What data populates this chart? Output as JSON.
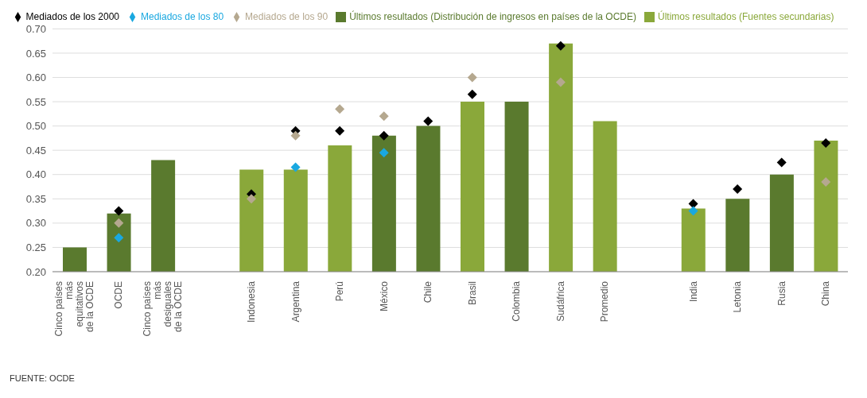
{
  "chart_data": {
    "type": "bar",
    "stacked": true,
    "categories": [
      "Cinco países más equitativos de la OCDE",
      "OCDE",
      "Cinco países más desiguales de la OCDE",
      null,
      "Indonesia",
      "Argentina",
      "Perú",
      "México",
      "Chile",
      "Brasil",
      "Colombia",
      "Sudáfrica",
      "Promedio",
      null,
      "India",
      "Letonia",
      "Rusia",
      "China"
    ],
    "series": [
      {
        "name": "Últimos resultados (Distribución de ingresos en países de la OCDE)",
        "color": "#5a7a2e",
        "values": [
          0.25,
          0.32,
          0.43,
          null,
          null,
          null,
          null,
          0.48,
          0.5,
          null,
          0.55,
          null,
          null,
          null,
          null,
          0.35,
          0.4,
          null
        ]
      },
      {
        "name": "Últimos resultados (Fuentes secundarias)",
        "color": "#8aa83a",
        "values": [
          null,
          null,
          null,
          null,
          0.41,
          0.41,
          0.46,
          null,
          null,
          0.55,
          null,
          0.67,
          0.51,
          null,
          0.33,
          null,
          null,
          0.47
        ]
      },
      {
        "type": "scatter",
        "name": "Mediados de los 2000",
        "color": "#000000",
        "marker": "diamond",
        "values": [
          null,
          0.325,
          null,
          null,
          0.36,
          0.49,
          0.49,
          0.48,
          0.51,
          0.565,
          null,
          0.665,
          null,
          null,
          0.34,
          0.37,
          0.425,
          0.465
        ]
      },
      {
        "type": "scatter",
        "name": "Mediados de los 90",
        "color": "#b5a88f",
        "marker": "diamond",
        "values": [
          null,
          0.3,
          null,
          null,
          0.35,
          0.48,
          0.535,
          0.52,
          null,
          0.6,
          null,
          0.59,
          null,
          null,
          null,
          null,
          null,
          0.385
        ]
      },
      {
        "type": "scatter",
        "name": "Mediados de los 80",
        "color": "#1aa8e0",
        "marker": "diamond",
        "values": [
          null,
          0.27,
          null,
          null,
          null,
          0.415,
          null,
          0.445,
          null,
          null,
          null,
          null,
          null,
          null,
          0.325,
          null,
          null,
          null
        ]
      }
    ],
    "ylim": [
      0.2,
      0.7
    ],
    "yticks": [
      {
        "value": 0.2,
        "label": "0.20"
      },
      {
        "value": 0.25,
        "label": "0.25"
      },
      {
        "value": 0.3,
        "label": "0.30"
      },
      {
        "value": 0.35,
        "label": "0.35"
      },
      {
        "value": 0.4,
        "label": "0.40"
      },
      {
        "value": 0.45,
        "label": "0.45"
      },
      {
        "value": 0.5,
        "label": "0.50"
      },
      {
        "value": 0.55,
        "label": "0.55"
      },
      {
        "value": 0.6,
        "label": "0.60"
      },
      {
        "value": 0.65,
        "label": "0.65"
      },
      {
        "value": 0.7,
        "label": "0.70"
      }
    ],
    "grid": "y",
    "legend": "top",
    "annotations": [
      "FUENTE: OCDE"
    ]
  }
}
